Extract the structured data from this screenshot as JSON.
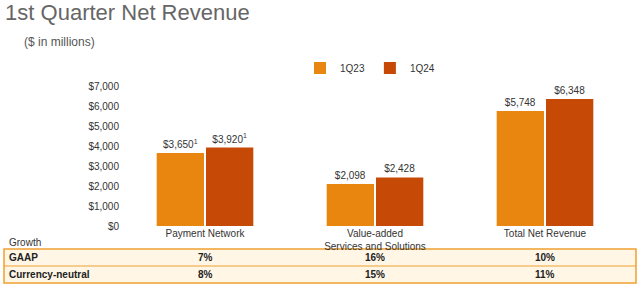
{
  "chart_data": {
    "type": "bar",
    "title": "1st Quarter Net Revenue",
    "subtitle": "($ in millions)",
    "categories": [
      "Payment Network",
      "Value-added Services and Solutions",
      "Total Net Revenue"
    ],
    "series": [
      {
        "name": "1Q23",
        "color": "#e8860f",
        "values": [
          3650,
          2098,
          5748
        ],
        "value_labels": [
          "$3,650",
          "$2,098",
          "$5,748"
        ],
        "footnote_marks": [
          "1",
          null,
          null
        ]
      },
      {
        "name": "1Q24",
        "color": "#c64a06",
        "values": [
          3920,
          2428,
          6348
        ],
        "value_labels": [
          "$3,920",
          "$2,428",
          "$6,348"
        ],
        "footnote_marks": [
          "1",
          null,
          null
        ]
      }
    ],
    "ylim": [
      0,
      7000
    ],
    "yticks": [
      {
        "value": 0,
        "label": "$0"
      },
      {
        "value": 1000,
        "label": "$1,000"
      },
      {
        "value": 2000,
        "label": "$2,000"
      },
      {
        "value": 3000,
        "label": "$3,000"
      },
      {
        "value": 4000,
        "label": "$4,000"
      },
      {
        "value": 5000,
        "label": "$5,000"
      },
      {
        "value": 6000,
        "label": "$6,000"
      },
      {
        "value": 7000,
        "label": "$7,000"
      }
    ],
    "grid": false,
    "legend": "top",
    "data_labels": true,
    "growth_table": {
      "header": "Growth",
      "rows": [
        [
          "GAAP",
          "7%",
          "16%",
          "10%"
        ],
        [
          "Currency-neutral",
          "8%",
          "15%",
          "11%"
        ]
      ]
    }
  }
}
